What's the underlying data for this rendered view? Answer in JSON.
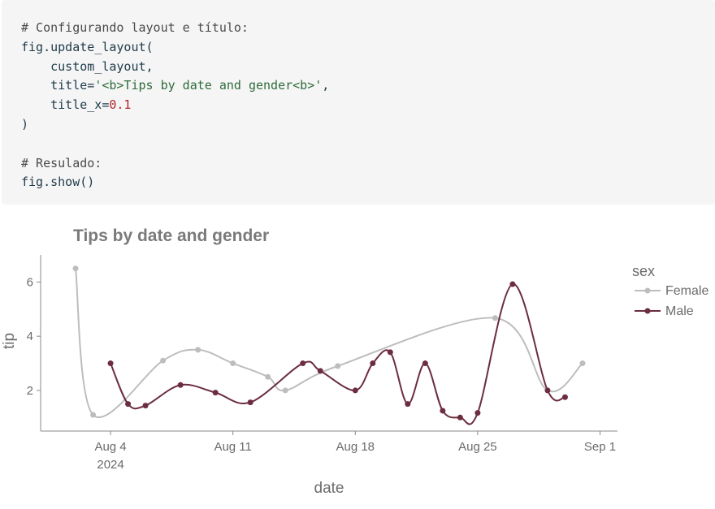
{
  "code": {
    "lines": [
      [
        {
          "t": "comment",
          "s": "# Configurando layout e título:"
        }
      ],
      [
        {
          "t": "plain",
          "s": "fig.update_layout("
        }
      ],
      [
        {
          "t": "plain",
          "s": "    custom_layout,"
        }
      ],
      [
        {
          "t": "plain",
          "s": "    title="
        },
        {
          "t": "string",
          "s": "'<b>Tips by date and gender<b>'"
        },
        {
          "t": "plain",
          "s": ","
        }
      ],
      [
        {
          "t": "plain",
          "s": "    title_x="
        },
        {
          "t": "number",
          "s": "0.1"
        }
      ],
      [
        {
          "t": "plain",
          "s": ")"
        }
      ],
      [],
      [
        {
          "t": "comment",
          "s": "# Resulado:"
        }
      ],
      [
        {
          "t": "plain",
          "s": "fig.show()"
        }
      ]
    ]
  },
  "chart_data": {
    "type": "line",
    "line_shape": "spline",
    "title": "Tips by date and gender",
    "xlabel": "date",
    "ylabel": "tip",
    "x_range": [
      "2024-07-31",
      "2024-09-02"
    ],
    "ylim": [
      0.5,
      7.0
    ],
    "x_ticks": [
      {
        "date": "2024-08-04",
        "label": "Aug 4",
        "sublabel": "2024"
      },
      {
        "date": "2024-08-11",
        "label": "Aug 11",
        "sublabel": ""
      },
      {
        "date": "2024-08-18",
        "label": "Aug 18",
        "sublabel": ""
      },
      {
        "date": "2024-08-25",
        "label": "Aug 25",
        "sublabel": ""
      },
      {
        "date": "2024-09-01",
        "label": "Sep 1",
        "sublabel": ""
      }
    ],
    "y_ticks": [
      2,
      4,
      6
    ],
    "legend": {
      "title": "sex",
      "position": "right"
    },
    "series": [
      {
        "name": "Female",
        "color": "#bdbdbd",
        "points": [
          {
            "x": "2024-08-02",
            "y": 6.5
          },
          {
            "x": "2024-08-03",
            "y": 1.1
          },
          {
            "x": "2024-08-07",
            "y": 3.1
          },
          {
            "x": "2024-08-09",
            "y": 3.5
          },
          {
            "x": "2024-08-11",
            "y": 3.0
          },
          {
            "x": "2024-08-13",
            "y": 2.5
          },
          {
            "x": "2024-08-14",
            "y": 2.0
          },
          {
            "x": "2024-08-17",
            "y": 2.9
          },
          {
            "x": "2024-08-26",
            "y": 4.67
          },
          {
            "x": "2024-08-29",
            "y": 2.0
          },
          {
            "x": "2024-08-31",
            "y": 3.0
          }
        ]
      },
      {
        "name": "Male",
        "color": "#6b2d3f",
        "points": [
          {
            "x": "2024-08-04",
            "y": 3.0
          },
          {
            "x": "2024-08-05",
            "y": 1.5
          },
          {
            "x": "2024-08-06",
            "y": 1.44
          },
          {
            "x": "2024-08-08",
            "y": 2.2
          },
          {
            "x": "2024-08-10",
            "y": 1.92
          },
          {
            "x": "2024-08-12",
            "y": 1.56
          },
          {
            "x": "2024-08-15",
            "y": 3.0
          },
          {
            "x": "2024-08-16",
            "y": 2.72
          },
          {
            "x": "2024-08-18",
            "y": 2.0
          },
          {
            "x": "2024-08-19",
            "y": 3.0
          },
          {
            "x": "2024-08-20",
            "y": 3.41
          },
          {
            "x": "2024-08-21",
            "y": 1.5
          },
          {
            "x": "2024-08-22",
            "y": 3.0
          },
          {
            "x": "2024-08-23",
            "y": 1.25
          },
          {
            "x": "2024-08-24",
            "y": 1.0
          },
          {
            "x": "2024-08-25",
            "y": 1.17
          },
          {
            "x": "2024-08-27",
            "y": 5.92
          },
          {
            "x": "2024-08-29",
            "y": 2.0
          },
          {
            "x": "2024-08-30",
            "y": 1.75
          }
        ]
      }
    ]
  }
}
